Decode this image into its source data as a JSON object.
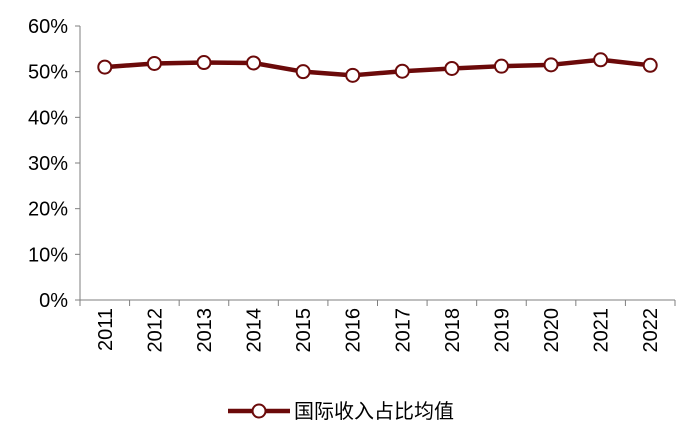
{
  "chart_data": {
    "type": "line",
    "title": "",
    "xlabel": "",
    "ylabel": "",
    "x": [
      "2011",
      "2012",
      "2013",
      "2014",
      "2015",
      "2016",
      "2017",
      "2018",
      "2019",
      "2020",
      "2021",
      "2022"
    ],
    "ylim": [
      0,
      60
    ],
    "yticks": [
      0,
      10,
      20,
      30,
      40,
      50,
      60
    ],
    "ytick_labels": [
      "0%",
      "10%",
      "20%",
      "30%",
      "40%",
      "50%",
      "60%"
    ],
    "series": [
      {
        "name": "国际收入占比均值",
        "color": "#6b0a0a",
        "marker": "open-circle",
        "values": [
          51.0,
          51.8,
          52.0,
          51.9,
          50.0,
          49.2,
          50.1,
          50.7,
          51.2,
          51.5,
          52.6,
          51.4
        ]
      }
    ],
    "grid": false,
    "legend_position": "bottom-center",
    "x_label_rotation": "vertical"
  }
}
